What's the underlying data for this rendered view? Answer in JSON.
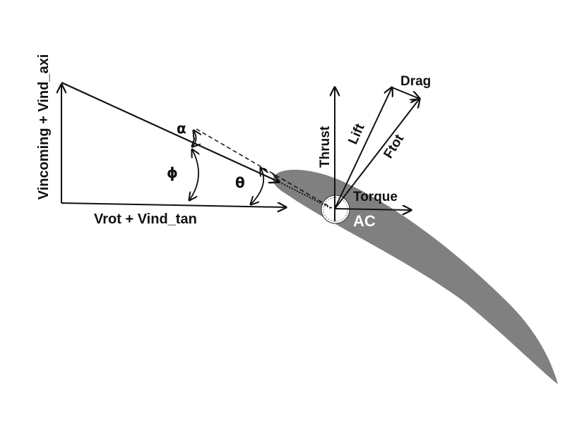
{
  "labels": {
    "vertical_velocity": "Vincoming + Vind_axi",
    "horizontal_velocity": "Vrot + Vind_tan",
    "alpha": "α",
    "phi": "ϕ",
    "theta": "θ",
    "thrust": "Thrust",
    "lift": "Lift",
    "drag": "Drag",
    "ftot": "Ftot",
    "torque": "Torque",
    "ac": "AC"
  },
  "colors": {
    "airfoil": "#808080",
    "lines": "#111111",
    "background": "#ffffff",
    "ac_text": "#ffffff"
  }
}
